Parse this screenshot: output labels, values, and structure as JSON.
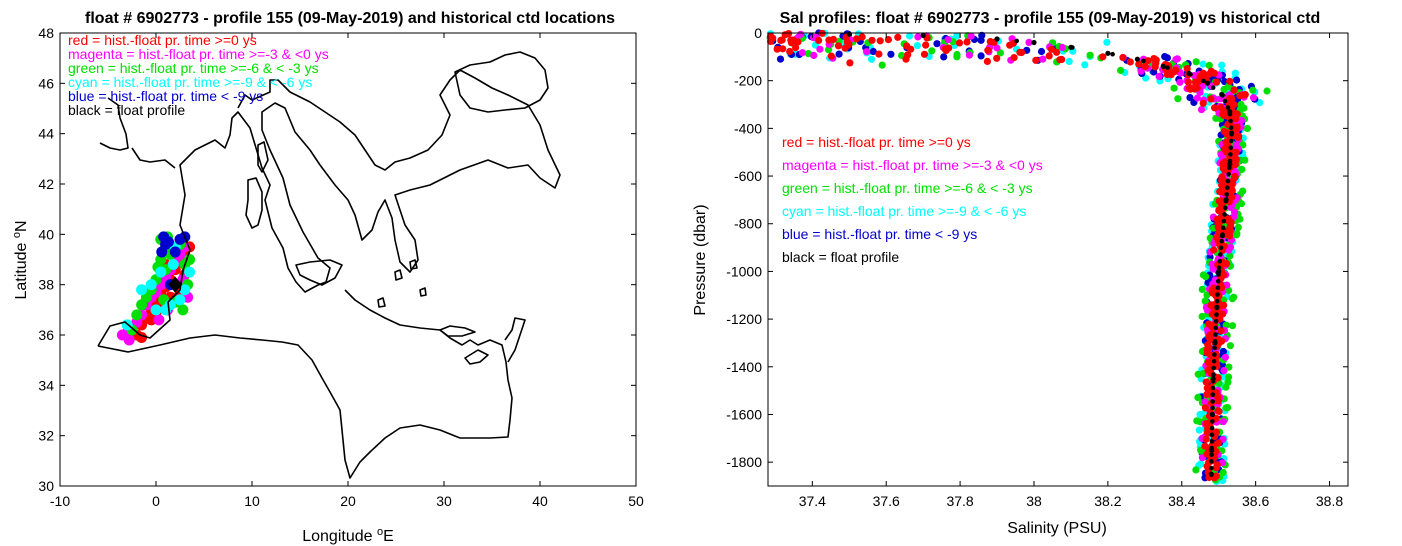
{
  "colors": {
    "red": "#ff0000",
    "magenta": "#ff00ff",
    "green": "#00e000",
    "cyan": "#00ffff",
    "blue": "#0000cc",
    "black": "#000000"
  },
  "chart_data": [
    {
      "type": "scatter",
      "title": "float # 6902773 - profile 155 (09-May-2019) and historical ctd locations",
      "xlabel": "Longitude",
      "xlabel_sup": "o",
      "xlabel_unit": "E",
      "ylabel": "Latitude",
      "ylabel_sup": "o",
      "ylabel_unit": "N",
      "xlim": [
        -10,
        50
      ],
      "ylim": [
        30,
        48
      ],
      "xticks": [
        "-10",
        "0",
        "10",
        "20",
        "30",
        "40",
        "50"
      ],
      "yticks": [
        "30",
        "32",
        "34",
        "36",
        "38",
        "40",
        "42",
        "44",
        "46",
        "48"
      ],
      "legend_placement": "top-left",
      "legend": [
        {
          "text": "red = hist.-float pr. time >=0 ys",
          "color": "red"
        },
        {
          "text": "magenta = hist.-float pr. time >=-3 & <0 ys",
          "color": "magenta"
        },
        {
          "text": "green = hist.-float pr. time >=-6 & < -3 ys",
          "color": "green"
        },
        {
          "text": "cyan = hist.-float pr. time >=-9 & < -6 ys",
          "color": "cyan"
        },
        {
          "text": "blue = hist.-float pr. time < -9 ys",
          "color": "blue"
        },
        {
          "text": "black = float profile",
          "color": "black"
        }
      ],
      "float_position": {
        "lon": 2.0,
        "lat": 38.0
      },
      "series": [
        {
          "color": "red",
          "points": [
            [
              -2.0,
              36.0
            ],
            [
              -1.5,
              36.4
            ],
            [
              -1.0,
              36.7
            ],
            [
              -0.5,
              37.0
            ],
            [
              0.0,
              37.3
            ],
            [
              0.5,
              37.6
            ],
            [
              1.0,
              37.9
            ],
            [
              1.5,
              38.2
            ],
            [
              2.0,
              38.6
            ],
            [
              2.5,
              38.9
            ],
            [
              3.0,
              39.2
            ],
            [
              3.5,
              39.5
            ],
            [
              -0.5,
              36.6
            ],
            [
              0.5,
              37.2
            ],
            [
              1.5,
              37.5
            ],
            [
              2.5,
              37.7
            ],
            [
              3.0,
              38.4
            ],
            [
              1.0,
              38.8
            ],
            [
              -1.5,
              35.9
            ],
            [
              0.0,
              36.9
            ]
          ]
        },
        {
          "color": "magenta",
          "points": [
            [
              -3.5,
              36.0
            ],
            [
              -3.0,
              36.1
            ],
            [
              -2.5,
              36.3
            ],
            [
              -2.0,
              36.5
            ],
            [
              -1.5,
              36.8
            ],
            [
              -1.0,
              37.2
            ],
            [
              -0.5,
              37.5
            ],
            [
              0.0,
              37.7
            ],
            [
              0.5,
              38.0
            ],
            [
              1.0,
              38.3
            ],
            [
              1.5,
              38.6
            ],
            [
              2.0,
              38.9
            ],
            [
              2.5,
              39.2
            ],
            [
              3.0,
              39.5
            ],
            [
              3.3,
              37.5
            ],
            [
              2.8,
              38.2
            ],
            [
              1.2,
              37.0
            ],
            [
              0.3,
              36.6
            ],
            [
              -2.8,
              35.8
            ],
            [
              1.8,
              39.4
            ]
          ]
        },
        {
          "color": "green",
          "points": [
            [
              0.5,
              39.8
            ],
            [
              1.0,
              39.5
            ],
            [
              1.5,
              39.2
            ],
            [
              0.5,
              39.0
            ],
            [
              1.0,
              38.6
            ],
            [
              2.5,
              39.6
            ],
            [
              3.0,
              38.8
            ],
            [
              -0.5,
              37.8
            ],
            [
              0.0,
              38.2
            ],
            [
              -1.0,
              37.5
            ],
            [
              -2.0,
              36.8
            ],
            [
              -2.5,
              36.2
            ],
            [
              2.0,
              37.3
            ],
            [
              3.5,
              39.0
            ],
            [
              1.2,
              39.9
            ],
            [
              0.2,
              38.7
            ],
            [
              -1.5,
              37.2
            ],
            [
              2.8,
              37.0
            ],
            [
              3.3,
              38.0
            ],
            [
              0.8,
              37.4
            ]
          ]
        },
        {
          "color": "cyan",
          "points": [
            [
              1.0,
              37.0
            ],
            [
              1.5,
              37.2
            ],
            [
              2.5,
              37.4
            ],
            [
              3.0,
              37.8
            ],
            [
              2.0,
              39.5
            ],
            [
              0.5,
              38.5
            ],
            [
              -0.5,
              38.0
            ],
            [
              -1.5,
              37.8
            ],
            [
              3.5,
              38.5
            ],
            [
              1.8,
              38.8
            ],
            [
              -3.0,
              36.4
            ],
            [
              0.0,
              37.0
            ]
          ]
        },
        {
          "color": "blue",
          "points": [
            [
              0.8,
              39.9
            ],
            [
              1.3,
              39.7
            ],
            [
              2.0,
              39.3
            ],
            [
              1.0,
              39.6
            ],
            [
              2.5,
              39.8
            ],
            [
              1.5,
              38.0
            ],
            [
              3.0,
              39.9
            ],
            [
              0.6,
              39.3
            ]
          ]
        }
      ]
    },
    {
      "type": "scatter",
      "title": "Sal profiles: float # 6902773 - profile 155 (09-May-2019) vs historical ctd",
      "xlabel": "Salinity (PSU)",
      "ylabel": "Pressure (dbar)",
      "xlim": [
        37.28,
        38.85
      ],
      "ylim": [
        -1900,
        0
      ],
      "xticks": [
        "37.4",
        "37.6",
        "37.8",
        "38",
        "38.2",
        "38.4",
        "38.6",
        "38.8"
      ],
      "yticks": [
        "0",
        "-200",
        "-400",
        "-600",
        "-800",
        "-1000",
        "-1200",
        "-1400",
        "-1600",
        "-1800"
      ],
      "legend_placement": "center-left",
      "legend": [
        {
          "text": "red = hist.-float pr. time >=0 ys",
          "color": "red"
        },
        {
          "text": "magenta = hist.-float pr. time >=-3 & <0 ys",
          "color": "magenta"
        },
        {
          "text": "green = hist.-float pr. time >=-6 & < -3 ys",
          "color": "green"
        },
        {
          "text": "cyan = hist.-float pr. time >=-9 & < -6 ys",
          "color": "cyan"
        },
        {
          "text": "blue = hist.-float pr. time < -9 ys",
          "color": "blue"
        },
        {
          "text": "black = float profile",
          "color": "black"
        }
      ],
      "float_profile": [
        [
          37.5,
          -5
        ],
        [
          37.7,
          -10
        ],
        [
          37.9,
          -25
        ],
        [
          38.0,
          -40
        ],
        [
          38.1,
          -60
        ],
        [
          38.2,
          -85
        ],
        [
          38.28,
          -110
        ],
        [
          38.35,
          -140
        ],
        [
          38.42,
          -170
        ],
        [
          38.47,
          -210
        ],
        [
          38.51,
          -260
        ],
        [
          38.53,
          -330
        ],
        [
          38.535,
          -420
        ],
        [
          38.53,
          -550
        ],
        [
          38.52,
          -700
        ],
        [
          38.51,
          -850
        ],
        [
          38.5,
          -1000
        ],
        [
          38.495,
          -1150
        ],
        [
          38.49,
          -1300
        ],
        [
          38.485,
          -1450
        ],
        [
          38.483,
          -1600
        ],
        [
          38.481,
          -1750
        ],
        [
          38.48,
          -1850
        ]
      ],
      "series": [
        {
          "color": "red",
          "spread": [
            0.04,
            30
          ]
        },
        {
          "color": "magenta",
          "spread": [
            0.06,
            50
          ]
        },
        {
          "color": "green",
          "spread": [
            0.09,
            60
          ]
        },
        {
          "color": "cyan",
          "spread": [
            0.07,
            70
          ]
        },
        {
          "color": "blue",
          "spread": [
            0.06,
            55
          ]
        }
      ]
    }
  ]
}
